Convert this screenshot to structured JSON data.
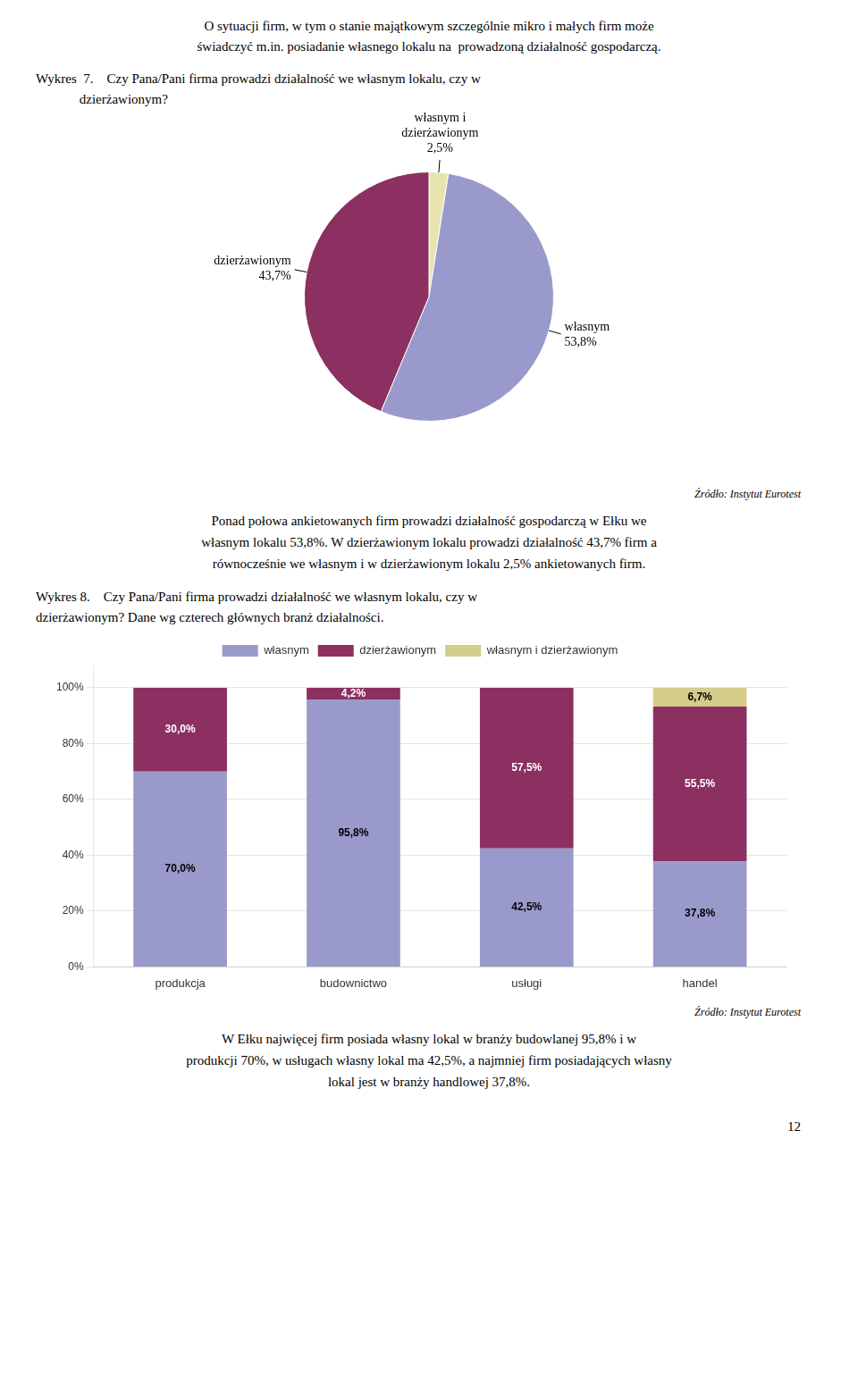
{
  "chart_data": [
    {
      "type": "pie",
      "title": "Wykres  7.    Czy Pana/Pani firma prowadzi działalność we własnym lokalu, czy w\n             dzierżawionym?",
      "categories": [
        "własnym i dzierżawionym",
        "własnym",
        "dzierżawionym"
      ],
      "values": [
        2.5,
        53.8,
        43.7
      ],
      "value_labels": [
        "2,5%",
        "53,8%",
        "43,7%"
      ],
      "colors": [
        "#e8e4b0",
        "#9999cc",
        "#8b3060"
      ],
      "data_labels": true,
      "annotations": [
        "O sytuacji firm, w tym o stanie majątkowym szczególnie mikro i małych firm może",
        "świadczyć m.in. posiadanie własnego lokalu na  prowadzoną działalność gospodarczą.",
        "Źródło: Instytut Eurotest",
        "Ponad połowa ankietowanych firm prowadzi działalność gospodarczą w Ełku we\nwłasnym lokalu 53,8%. W dzierżawionym lokalu prowadzi działalność 43,7% firm a\nrównocześnie we własnym i w dzierżawionym lokalu 2,5% ankietowanych firm."
      ]
    },
    {
      "type": "bar",
      "stacked": true,
      "title": "Wykres 8.    Czy Pana/Pani firma prowadzi działalność we własnym lokalu, czy w\ndzierżawionym? Dane wg czterech głównych branż działalności.",
      "categories": [
        "produkcja",
        "budownictwo",
        "usługi",
        "handel"
      ],
      "series": [
        {
          "name": "własnym",
          "color": "#9999cc",
          "values": [
            70.0,
            95.8,
            42.5,
            37.8
          ],
          "value_labels": [
            "70,0%",
            "95,8%",
            "42,5%",
            "37,8%"
          ]
        },
        {
          "name": "dzierżawionym",
          "color": "#8b3060",
          "values": [
            30.0,
            4.2,
            57.5,
            55.5
          ],
          "value_labels": [
            "30,0%",
            "4,2%",
            "57,5%",
            "55,5%"
          ]
        },
        {
          "name": "własnym i dzierżawionym",
          "color": "#d4cc8a",
          "values": [
            0.0,
            0.0,
            0.0,
            6.7
          ],
          "value_labels": [
            null,
            null,
            null,
            "6,7%"
          ]
        }
      ],
      "ylim": [
        0,
        108
      ],
      "yticks": [
        {
          "value": 0,
          "label": "0%"
        },
        {
          "value": 20,
          "label": "20%"
        },
        {
          "value": 40,
          "label": "40%"
        },
        {
          "value": 60,
          "label": "60%"
        },
        {
          "value": 80,
          "label": "80%"
        },
        {
          "value": 100,
          "label": "100%"
        }
      ],
      "grid": true,
      "legend": "top",
      "data_labels": true,
      "annotations": [
        "Źródło: Instytut Eurotest",
        "W Ełku najwięcej firm posiada własny lokal w branży budowlanej 95,8% i w\nprodukcji 70%, w usługach własny lokal ma 42,5%, a najmniej firm posiadających własny\nlokal jest w branży handlowej 37,8%.",
        "12"
      ]
    }
  ]
}
